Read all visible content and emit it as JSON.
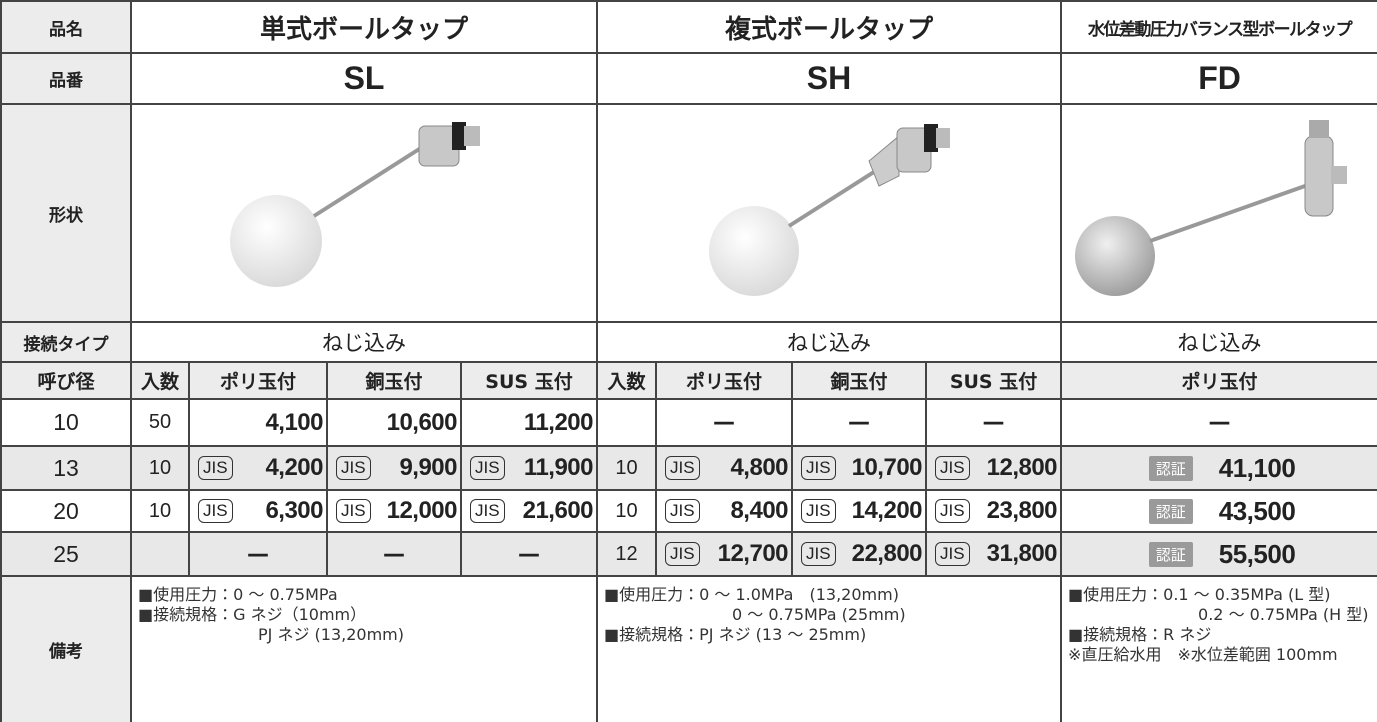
{
  "rows": {
    "name": {
      "label": "品名",
      "values": [
        "単式ボールタップ",
        "複式ボールタップ",
        "水位差動圧力バランス型ボールタップ"
      ]
    },
    "code": {
      "label": "品番",
      "values": [
        "SL",
        "SH",
        "FD"
      ]
    },
    "shape": {
      "label": "形状"
    },
    "connection": {
      "label": "接続タイプ",
      "values": [
        "ねじ込み",
        "ねじ込み",
        "ねじ込み"
      ]
    }
  },
  "table": {
    "header": [
      "呼び径",
      "入数",
      "ポリ玉付",
      "銅玉付",
      "SUS 玉付",
      "入数",
      "ポリ玉付",
      "銅玉付",
      "SUS 玉付",
      "ポリ玉付"
    ],
    "rows": [
      [
        "10",
        "50",
        {
          "price": "4,100"
        },
        {
          "price": "10,600"
        },
        {
          "price": "11,200"
        },
        null,
        "—",
        "—",
        "—",
        "—"
      ],
      [
        "13",
        "10",
        {
          "badge": "JIS",
          "price": "4,200"
        },
        {
          "badge": "JIS",
          "price": "9,900"
        },
        {
          "badge": "JIS",
          "price": "11,900"
        },
        "10",
        {
          "badge": "JIS",
          "price": "4,800"
        },
        {
          "badge": "JIS",
          "price": "10,700"
        },
        {
          "badge": "JIS",
          "price": "12,800"
        },
        {
          "badge": "認証",
          "price": "41,100"
        }
      ],
      [
        "20",
        "10",
        {
          "badge": "JIS",
          "price": "6,300"
        },
        {
          "badge": "JIS",
          "price": "12,000"
        },
        {
          "badge": "JIS",
          "price": "21,600"
        },
        "10",
        {
          "badge": "JIS",
          "price": "8,400"
        },
        {
          "badge": "JIS",
          "price": "14,200"
        },
        {
          "badge": "JIS",
          "price": "23,800"
        },
        {
          "badge": "認証",
          "price": "43,500"
        }
      ],
      [
        "25",
        null,
        "—",
        "—",
        "—",
        "12",
        {
          "badge": "JIS",
          "price": "12,700"
        },
        {
          "badge": "JIS",
          "price": "22,800"
        },
        {
          "badge": "JIS",
          "price": "31,800"
        },
        {
          "badge": "認証",
          "price": "55,500"
        }
      ]
    ]
  },
  "notes": {
    "label": "備考",
    "columns": [
      [
        "■使用圧力：0 ～ 0.75MPa",
        "■接続規格：G ネジ（10mm）",
        "PJ ネジ (13,20mm)"
      ],
      [
        "■使用圧力：0 ～ 1.0MPa　(13,20mm)",
        "0 ～ 0.75MPa (25mm)",
        "■接続規格：PJ ネジ (13 ～ 25mm)"
      ],
      [
        "■使用圧力：0.1 ～ 0.35MPa (L 型)",
        "0.2 ～ 0.75MPa (H 型)",
        "■接続規格：R ネジ",
        "※直圧給水用　※水位差範囲 100mm"
      ]
    ]
  }
}
